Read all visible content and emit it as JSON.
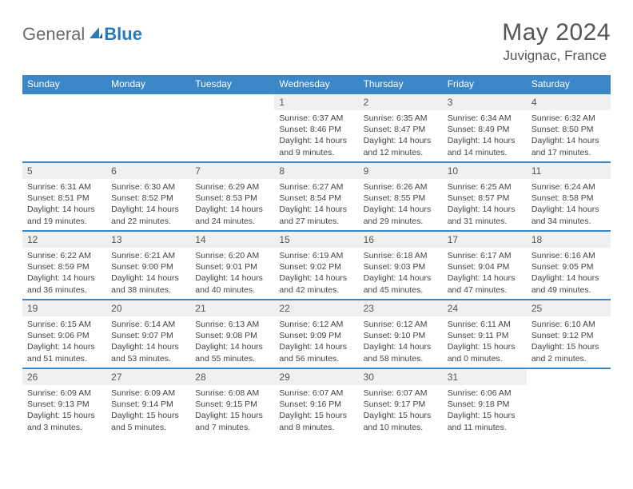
{
  "logo": {
    "text_general": "General",
    "text_blue": "Blue"
  },
  "header": {
    "month_title": "May 2024",
    "location": "Juvignac, France"
  },
  "colors": {
    "brand_blue": "#3c87c7",
    "header_text": "#ffffff",
    "daynum_bg": "#eef0f1",
    "text_gray": "#555555",
    "body_text": "#444444",
    "background": "#ffffff"
  },
  "day_headers": [
    "Sunday",
    "Monday",
    "Tuesday",
    "Wednesday",
    "Thursday",
    "Friday",
    "Saturday"
  ],
  "weeks": [
    [
      {
        "empty": true
      },
      {
        "empty": true
      },
      {
        "empty": true
      },
      {
        "day": "1",
        "sunrise": "Sunrise: 6:37 AM",
        "sunset": "Sunset: 8:46 PM",
        "daylight1": "Daylight: 14 hours",
        "daylight2": "and 9 minutes."
      },
      {
        "day": "2",
        "sunrise": "Sunrise: 6:35 AM",
        "sunset": "Sunset: 8:47 PM",
        "daylight1": "Daylight: 14 hours",
        "daylight2": "and 12 minutes."
      },
      {
        "day": "3",
        "sunrise": "Sunrise: 6:34 AM",
        "sunset": "Sunset: 8:49 PM",
        "daylight1": "Daylight: 14 hours",
        "daylight2": "and 14 minutes."
      },
      {
        "day": "4",
        "sunrise": "Sunrise: 6:32 AM",
        "sunset": "Sunset: 8:50 PM",
        "daylight1": "Daylight: 14 hours",
        "daylight2": "and 17 minutes."
      }
    ],
    [
      {
        "day": "5",
        "sunrise": "Sunrise: 6:31 AM",
        "sunset": "Sunset: 8:51 PM",
        "daylight1": "Daylight: 14 hours",
        "daylight2": "and 19 minutes."
      },
      {
        "day": "6",
        "sunrise": "Sunrise: 6:30 AM",
        "sunset": "Sunset: 8:52 PM",
        "daylight1": "Daylight: 14 hours",
        "daylight2": "and 22 minutes."
      },
      {
        "day": "7",
        "sunrise": "Sunrise: 6:29 AM",
        "sunset": "Sunset: 8:53 PM",
        "daylight1": "Daylight: 14 hours",
        "daylight2": "and 24 minutes."
      },
      {
        "day": "8",
        "sunrise": "Sunrise: 6:27 AM",
        "sunset": "Sunset: 8:54 PM",
        "daylight1": "Daylight: 14 hours",
        "daylight2": "and 27 minutes."
      },
      {
        "day": "9",
        "sunrise": "Sunrise: 6:26 AM",
        "sunset": "Sunset: 8:55 PM",
        "daylight1": "Daylight: 14 hours",
        "daylight2": "and 29 minutes."
      },
      {
        "day": "10",
        "sunrise": "Sunrise: 6:25 AM",
        "sunset": "Sunset: 8:57 PM",
        "daylight1": "Daylight: 14 hours",
        "daylight2": "and 31 minutes."
      },
      {
        "day": "11",
        "sunrise": "Sunrise: 6:24 AM",
        "sunset": "Sunset: 8:58 PM",
        "daylight1": "Daylight: 14 hours",
        "daylight2": "and 34 minutes."
      }
    ],
    [
      {
        "day": "12",
        "sunrise": "Sunrise: 6:22 AM",
        "sunset": "Sunset: 8:59 PM",
        "daylight1": "Daylight: 14 hours",
        "daylight2": "and 36 minutes."
      },
      {
        "day": "13",
        "sunrise": "Sunrise: 6:21 AM",
        "sunset": "Sunset: 9:00 PM",
        "daylight1": "Daylight: 14 hours",
        "daylight2": "and 38 minutes."
      },
      {
        "day": "14",
        "sunrise": "Sunrise: 6:20 AM",
        "sunset": "Sunset: 9:01 PM",
        "daylight1": "Daylight: 14 hours",
        "daylight2": "and 40 minutes."
      },
      {
        "day": "15",
        "sunrise": "Sunrise: 6:19 AM",
        "sunset": "Sunset: 9:02 PM",
        "daylight1": "Daylight: 14 hours",
        "daylight2": "and 42 minutes."
      },
      {
        "day": "16",
        "sunrise": "Sunrise: 6:18 AM",
        "sunset": "Sunset: 9:03 PM",
        "daylight1": "Daylight: 14 hours",
        "daylight2": "and 45 minutes."
      },
      {
        "day": "17",
        "sunrise": "Sunrise: 6:17 AM",
        "sunset": "Sunset: 9:04 PM",
        "daylight1": "Daylight: 14 hours",
        "daylight2": "and 47 minutes."
      },
      {
        "day": "18",
        "sunrise": "Sunrise: 6:16 AM",
        "sunset": "Sunset: 9:05 PM",
        "daylight1": "Daylight: 14 hours",
        "daylight2": "and 49 minutes."
      }
    ],
    [
      {
        "day": "19",
        "sunrise": "Sunrise: 6:15 AM",
        "sunset": "Sunset: 9:06 PM",
        "daylight1": "Daylight: 14 hours",
        "daylight2": "and 51 minutes."
      },
      {
        "day": "20",
        "sunrise": "Sunrise: 6:14 AM",
        "sunset": "Sunset: 9:07 PM",
        "daylight1": "Daylight: 14 hours",
        "daylight2": "and 53 minutes."
      },
      {
        "day": "21",
        "sunrise": "Sunrise: 6:13 AM",
        "sunset": "Sunset: 9:08 PM",
        "daylight1": "Daylight: 14 hours",
        "daylight2": "and 55 minutes."
      },
      {
        "day": "22",
        "sunrise": "Sunrise: 6:12 AM",
        "sunset": "Sunset: 9:09 PM",
        "daylight1": "Daylight: 14 hours",
        "daylight2": "and 56 minutes."
      },
      {
        "day": "23",
        "sunrise": "Sunrise: 6:12 AM",
        "sunset": "Sunset: 9:10 PM",
        "daylight1": "Daylight: 14 hours",
        "daylight2": "and 58 minutes."
      },
      {
        "day": "24",
        "sunrise": "Sunrise: 6:11 AM",
        "sunset": "Sunset: 9:11 PM",
        "daylight1": "Daylight: 15 hours",
        "daylight2": "and 0 minutes."
      },
      {
        "day": "25",
        "sunrise": "Sunrise: 6:10 AM",
        "sunset": "Sunset: 9:12 PM",
        "daylight1": "Daylight: 15 hours",
        "daylight2": "and 2 minutes."
      }
    ],
    [
      {
        "day": "26",
        "sunrise": "Sunrise: 6:09 AM",
        "sunset": "Sunset: 9:13 PM",
        "daylight1": "Daylight: 15 hours",
        "daylight2": "and 3 minutes."
      },
      {
        "day": "27",
        "sunrise": "Sunrise: 6:09 AM",
        "sunset": "Sunset: 9:14 PM",
        "daylight1": "Daylight: 15 hours",
        "daylight2": "and 5 minutes."
      },
      {
        "day": "28",
        "sunrise": "Sunrise: 6:08 AM",
        "sunset": "Sunset: 9:15 PM",
        "daylight1": "Daylight: 15 hours",
        "daylight2": "and 7 minutes."
      },
      {
        "day": "29",
        "sunrise": "Sunrise: 6:07 AM",
        "sunset": "Sunset: 9:16 PM",
        "daylight1": "Daylight: 15 hours",
        "daylight2": "and 8 minutes."
      },
      {
        "day": "30",
        "sunrise": "Sunrise: 6:07 AM",
        "sunset": "Sunset: 9:17 PM",
        "daylight1": "Daylight: 15 hours",
        "daylight2": "and 10 minutes."
      },
      {
        "day": "31",
        "sunrise": "Sunrise: 6:06 AM",
        "sunset": "Sunset: 9:18 PM",
        "daylight1": "Daylight: 15 hours",
        "daylight2": "and 11 minutes."
      },
      {
        "empty": true
      }
    ]
  ]
}
